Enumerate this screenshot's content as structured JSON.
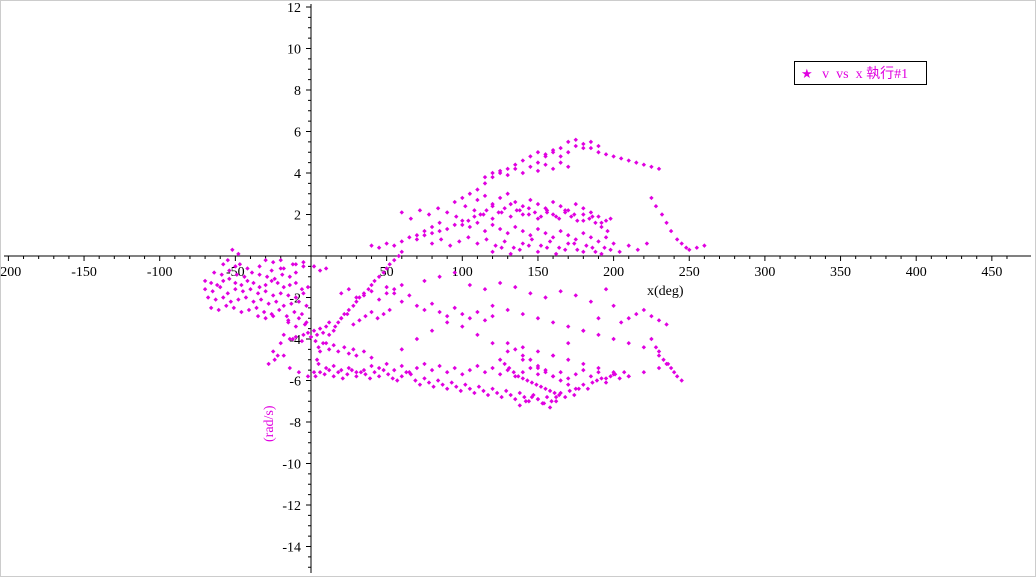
{
  "colors": {
    "series": "#e000e0",
    "axis": "#000000",
    "background": "#ffffff"
  },
  "chart_data": {
    "type": "scatter",
    "title": "",
    "xlabel": "x(deg)",
    "ylabel": "(rad/s)",
    "xlim": [
      -203,
      467
    ],
    "ylim": [
      -15.2,
      12.4
    ],
    "xticks": [
      -200,
      -150,
      -100,
      -50,
      50,
      100,
      150,
      200,
      250,
      300,
      350,
      400,
      450
    ],
    "yticks": [
      12,
      10,
      8,
      6,
      4,
      2,
      -2,
      -4,
      -6,
      -8,
      -10,
      -12,
      -14
    ],
    "xtick_labels": [
      "-200",
      "-150",
      "-100",
      "-50",
      "50",
      "100",
      "150",
      "200",
      "250",
      "300",
      "350",
      "400",
      "450"
    ],
    "ytick_labels": [
      "12",
      "10",
      "8",
      "6",
      "4",
      "2",
      "-2",
      "-4",
      "-6",
      "-8",
      "-10",
      "-12",
      "-14"
    ],
    "grid": false,
    "legend_position": "top-right",
    "legend_marker": "★",
    "series": [
      {
        "name": "v vs x執行#1",
        "marker": "diamond",
        "x": [
          -70,
          -66,
          -62,
          -58,
          -54,
          -50,
          -46,
          -42,
          -38,
          -34,
          -30,
          -26,
          -22,
          -18,
          -14,
          -10,
          -6,
          -2,
          -70,
          -65,
          -60,
          -55,
          -50,
          -45,
          -40,
          -35,
          -30,
          -25,
          -20,
          -15,
          -10,
          -5,
          -68,
          -63,
          -58,
          -53,
          -48,
          -43,
          -38,
          -33,
          -28,
          -23,
          -18,
          -13,
          -8,
          -3,
          -66,
          -61,
          -56,
          -51,
          -46,
          -41,
          -36,
          -31,
          -26,
          -21,
          -16,
          -11,
          -6,
          -64,
          -59,
          -54,
          -49,
          -44,
          -39,
          -34,
          -29,
          -24,
          -19,
          -14,
          -52,
          -48,
          -55,
          -47,
          -20,
          -10,
          -5,
          2,
          6,
          10,
          -58,
          -50,
          -42,
          -34,
          -26,
          -18,
          -10,
          -35,
          -30,
          -25,
          -15,
          -8,
          -3,
          -30,
          -25,
          -20,
          -12,
          -5,
          -15,
          -10,
          -4,
          -28,
          -24,
          -22,
          -18,
          -14,
          -8,
          -2,
          2,
          4,
          6,
          10,
          12,
          15,
          18,
          20,
          22,
          25,
          28,
          30,
          32,
          35,
          38,
          40,
          42,
          45,
          48,
          50,
          52,
          55,
          58,
          60,
          3,
          6,
          9,
          12,
          15,
          18,
          21,
          24,
          27,
          30,
          33,
          36,
          39,
          42,
          45,
          48,
          51,
          54,
          57,
          60,
          63,
          66,
          69,
          72,
          75,
          78,
          81,
          84,
          87,
          90,
          93,
          96,
          99,
          102,
          105,
          108,
          111,
          114,
          117,
          120,
          123,
          126,
          129,
          132,
          135,
          138,
          141,
          144,
          147,
          150,
          153,
          156,
          159,
          162,
          165,
          168,
          171,
          174,
          177,
          180,
          183,
          186,
          189,
          192,
          195,
          198,
          201,
          204,
          207,
          210,
          5,
          10,
          15,
          20,
          25,
          30,
          35,
          40,
          45,
          50,
          55,
          60,
          65,
          70,
          75,
          80,
          85,
          90,
          95,
          100,
          105,
          110,
          115,
          120,
          125,
          130,
          135,
          140,
          145,
          150,
          155,
          160,
          165,
          170,
          175,
          180,
          185,
          190,
          195,
          200,
          -25,
          -20,
          -12,
          -5,
          0,
          3,
          -18,
          -14,
          -10,
          -6,
          -2,
          0,
          2,
          4,
          6,
          8,
          10,
          5,
          8,
          12,
          15,
          18,
          22,
          25,
          28,
          30,
          35,
          40,
          12,
          16,
          20,
          24,
          28,
          32,
          36,
          40,
          44,
          48,
          52,
          20,
          25,
          30,
          35,
          40,
          45,
          50,
          55,
          60,
          40,
          45,
          50,
          55,
          60,
          65,
          70,
          75,
          80,
          85,
          50,
          55,
          60,
          65,
          70,
          75,
          80,
          85,
          90,
          95,
          100,
          105,
          110,
          115,
          120,
          60,
          66,
          72,
          78,
          84,
          90,
          96,
          102,
          108,
          114,
          120,
          126,
          132,
          138,
          144,
          150,
          156,
          162,
          168,
          174,
          180,
          186,
          192,
          198,
          70,
          75,
          80,
          85,
          90,
          95,
          100,
          105,
          110,
          115,
          120,
          125,
          130,
          135,
          140,
          145,
          150,
          155,
          160,
          165,
          170,
          175,
          180,
          185,
          190,
          195,
          200,
          80,
          86,
          92,
          98,
          104,
          110,
          116,
          122,
          128,
          134,
          140,
          146,
          152,
          158,
          164,
          170,
          176,
          182,
          188,
          194,
          95,
          100,
          105,
          110,
          115,
          120,
          125,
          130,
          135,
          140,
          145,
          150,
          155,
          160,
          165,
          170,
          175,
          180,
          185,
          190,
          195,
          100,
          104,
          108,
          112,
          116,
          120,
          124,
          128,
          132,
          136,
          140,
          144,
          148,
          152,
          156,
          160,
          164,
          168,
          172,
          176,
          180,
          184,
          188,
          192,
          196,
          110,
          115,
          120,
          125,
          130,
          135,
          140,
          145,
          150,
          155,
          160,
          165,
          170,
          175,
          180,
          185,
          190,
          115,
          120,
          125,
          130,
          135,
          140,
          145,
          150,
          155,
          160,
          165,
          170,
          120,
          126,
          132,
          138,
          144,
          150,
          156,
          162,
          168,
          174,
          180,
          186,
          192,
          198,
          204,
          210,
          216,
          222,
          150,
          155,
          160,
          165,
          170,
          175,
          180,
          185,
          190,
          195,
          200,
          205,
          210,
          215,
          220,
          225,
          230,
          225,
          228,
          232,
          235,
          238,
          242,
          245,
          248,
          250,
          255,
          260,
          225,
          228,
          230,
          233,
          236,
          238,
          240,
          242,
          245,
          60,
          70,
          80,
          90,
          100,
          110,
          120,
          130,
          140,
          150,
          160,
          170,
          180,
          190,
          200,
          205,
          210,
          215,
          220,
          225,
          230,
          235,
          75,
          85,
          95,
          105,
          115,
          125,
          135,
          145,
          155,
          165,
          175,
          185,
          195,
          140,
          150,
          160,
          170,
          180,
          190,
          200,
          210,
          220,
          230,
          235,
          120,
          130,
          140,
          150,
          160,
          170,
          180,
          190,
          200,
          210,
          220,
          230,
          130,
          135,
          140,
          145,
          150,
          155,
          160,
          165,
          170,
          175,
          125,
          128,
          131,
          134,
          137,
          140,
          143,
          146,
          149,
          152,
          155,
          158,
          161,
          164,
          138,
          142,
          146,
          150,
          154,
          158,
          162
        ],
        "y": [
          -1.2,
          -1.3,
          -1.4,
          -1.2,
          -1.1,
          -1.3,
          -1.4,
          -1.2,
          -1.3,
          -1.5,
          -1.4,
          -1.2,
          -1.3,
          -1.5,
          -1.4,
          -1.3,
          -1.6,
          -1.5,
          -1.6,
          -1.7,
          -1.5,
          -1.8,
          -1.6,
          -1.7,
          -1.6,
          -1.8,
          -1.7,
          -1.9,
          -1.8,
          -1.9,
          -2.0,
          -1.8,
          -2.0,
          -2.1,
          -2.0,
          -2.2,
          -2.1,
          -2.0,
          -2.2,
          -2.1,
          -2.3,
          -2.2,
          -2.4,
          -2.3,
          -2.2,
          -2.4,
          -2.5,
          -2.6,
          -2.4,
          -2.5,
          -2.7,
          -2.6,
          -2.5,
          -2.7,
          -2.8,
          -2.6,
          -2.9,
          -2.7,
          -2.8,
          -0.8,
          -0.9,
          -0.7,
          -0.9,
          -1.0,
          -0.8,
          -0.9,
          -1.0,
          -1.1,
          -0.9,
          -1.0,
          0.3,
          0.1,
          -0.2,
          -0.4,
          -0.6,
          -0.4,
          -0.3,
          -0.5,
          -0.7,
          -0.6,
          -0.4,
          -0.5,
          -0.6,
          -0.5,
          -0.7,
          -0.6,
          -0.8,
          -2.9,
          -3.0,
          -2.9,
          -3.1,
          -3.0,
          -3.2,
          -0.2,
          -0.3,
          -0.2,
          -0.4,
          -0.5,
          -3.2,
          -3.4,
          -3.3,
          -5.2,
          -5.0,
          -4.8,
          -4.8,
          -5.4,
          -5.6,
          -5.8,
          -5.6,
          -5.0,
          -4.6,
          -4.2,
          -3.8,
          -3.6,
          -3.2,
          -3.0,
          -2.8,
          -2.6,
          -2.4,
          -2.2,
          -2.0,
          -1.8,
          -1.6,
          -1.4,
          -1.2,
          -1.0,
          -0.8,
          -0.6,
          -0.4,
          -0.2,
          0.0,
          0.2,
          -5.8,
          -5.6,
          -5.7,
          -5.5,
          -5.8,
          -5.6,
          -5.9,
          -5.7,
          -5.5,
          -5.8,
          -5.6,
          -5.7,
          -5.9,
          -5.6,
          -5.8,
          -5.5,
          -5.7,
          -5.9,
          -6.0,
          -5.8,
          -5.6,
          -5.7,
          -6.0,
          -6.2,
          -5.9,
          -6.1,
          -6.3,
          -6.0,
          -6.2,
          -6.4,
          -6.1,
          -6.3,
          -6.5,
          -6.2,
          -6.4,
          -6.6,
          -6.3,
          -6.5,
          -6.7,
          -6.4,
          -6.6,
          -6.8,
          -6.5,
          -6.7,
          -6.9,
          -6.6,
          -6.8,
          -7.0,
          -6.7,
          -6.9,
          -7.1,
          -6.8,
          -7.0,
          -6.8,
          -6.6,
          -6.8,
          -6.5,
          -6.7,
          -6.4,
          -6.2,
          -6.4,
          -6.1,
          -6.0,
          -5.9,
          -6.1,
          -5.8,
          -5.7,
          -5.9,
          -5.6,
          -5.8,
          -5.2,
          -5.4,
          -5.3,
          -5.5,
          -5.4,
          -5.6,
          -5.5,
          -5.3,
          -5.4,
          -5.2,
          -5.5,
          -5.3,
          -5.6,
          -5.4,
          -5.2,
          -5.5,
          -5.3,
          -5.6,
          -5.4,
          -5.7,
          -5.5,
          -5.3,
          -5.6,
          -5.4,
          -5.7,
          -5.5,
          -5.8,
          -5.6,
          -5.4,
          -5.7,
          -5.5,
          -5.8,
          -5.6,
          -5.9,
          -5.7,
          -5.5,
          -5.8,
          -5.6,
          -5.9,
          -5.7,
          -4.6,
          -4.2,
          -4.0,
          -3.8,
          -3.9,
          -4.1,
          -3.8,
          -4.0,
          -3.9,
          -4.1,
          -3.7,
          -3.9,
          -3.6,
          -3.8,
          -3.5,
          -3.7,
          -3.4,
          -4.4,
          -4.2,
          -4.5,
          -4.3,
          -4.6,
          -4.4,
          -4.7,
          -4.5,
          -4.8,
          -4.6,
          -4.9,
          -3.2,
          -3.4,
          -3.0,
          -2.8,
          -3.3,
          -3.1,
          -2.9,
          -2.7,
          -3.0,
          -2.8,
          -2.6,
          -1.8,
          -1.6,
          -2.0,
          -1.9,
          -1.7,
          -2.1,
          -1.8,
          -1.6,
          -1.4,
          0.5,
          0.4,
          0.6,
          0.5,
          0.7,
          0.9,
          0.8,
          1.0,
          1.1,
          1.2,
          -1.5,
          -1.8,
          -2.2,
          -1.9,
          -2.4,
          -2.6,
          -2.3,
          -2.7,
          -2.9,
          -2.5,
          -2.8,
          -3.0,
          -2.7,
          -3.1,
          -2.9,
          2.1,
          1.8,
          2.2,
          2.0,
          2.3,
          2.1,
          1.9,
          2.4,
          2.2,
          2.0,
          1.8,
          2.1,
          1.9,
          2.2,
          2.0,
          1.8,
          2.1,
          1.9,
          2.2,
          2.0,
          1.7,
          1.9,
          1.6,
          1.8,
          1.0,
          1.2,
          1.4,
          1.6,
          1.3,
          1.5,
          1.7,
          1.4,
          1.6,
          1.2,
          1.5,
          1.3,
          1.1,
          1.4,
          1.2,
          1.0,
          1.3,
          1.1,
          0.9,
          1.2,
          1.0,
          0.8,
          1.1,
          0.9,
          0.7,
          0.9,
          0.6,
          0.6,
          0.8,
          0.5,
          0.7,
          0.9,
          0.6,
          0.8,
          0.5,
          0.7,
          0.4,
          0.6,
          0.8,
          0.5,
          0.7,
          0.4,
          0.6,
          0.3,
          0.5,
          0.2,
          0.4,
          2.6,
          2.8,
          3.0,
          2.7,
          2.9,
          2.5,
          2.8,
          3.0,
          2.6,
          2.4,
          2.7,
          2.5,
          2.3,
          2.6,
          2.4,
          2.2,
          2.5,
          2.3,
          2.1,
          1.9,
          1.7,
          1.5,
          1.7,
          1.9,
          2.0,
          2.2,
          2.4,
          2.1,
          2.3,
          2.5,
          2.2,
          2.0,
          2.3,
          2.1,
          1.9,
          2.2,
          2.0,
          1.8,
          2.1,
          1.9,
          1.7,
          2.0,
          1.8,
          1.6,
          1.4,
          1.2,
          3.2,
          3.5,
          3.8,
          4.0,
          4.2,
          4.4,
          4.6,
          4.8,
          5.0,
          4.9,
          5.1,
          4.8,
          5.0,
          5.3,
          5.2,
          5.5,
          5.3,
          3.8,
          4.0,
          4.1,
          3.9,
          4.2,
          4.0,
          4.3,
          4.1,
          4.4,
          4.2,
          4.5,
          4.3,
          0.2,
          0.4,
          0.1,
          0.3,
          0.5,
          0.2,
          0.4,
          0.1,
          0.3,
          0.6,
          0.2,
          0.4,
          0.1,
          0.3,
          0.2,
          0.5,
          0.3,
          0.6,
          4.5,
          4.8,
          5.0,
          5.2,
          5.5,
          5.6,
          5.4,
          5.2,
          5.0,
          4.9,
          4.8,
          4.7,
          4.6,
          4.5,
          4.4,
          4.3,
          4.2,
          2.8,
          2.4,
          2.0,
          1.6,
          1.2,
          0.8,
          0.6,
          0.4,
          0.3,
          0.4,
          0.5,
          -4.0,
          -4.4,
          -4.8,
          -5.0,
          -5.2,
          -5.4,
          -5.6,
          -5.8,
          -6.0,
          -4.5,
          -4.0,
          -3.6,
          -3.2,
          -3.4,
          -3.8,
          -4.2,
          -4.6,
          -5.0,
          -5.4,
          -4.8,
          -4.2,
          -3.6,
          -3.0,
          -2.4,
          -3.2,
          -3.0,
          -2.8,
          -2.6,
          -2.9,
          -3.1,
          -3.3,
          -1.2,
          -1.0,
          -0.8,
          -1.4,
          -1.6,
          -1.3,
          -1.5,
          -1.8,
          -2.0,
          -1.7,
          -1.9,
          -2.2,
          -1.6,
          -4.4,
          -4.6,
          -4.8,
          -5.0,
          -5.2,
          -5.4,
          -5.6,
          -5.8,
          -5.6,
          -5.4,
          -5.2,
          -2.4,
          -2.6,
          -2.8,
          -3.0,
          -3.2,
          -3.4,
          -3.6,
          -3.8,
          -4.0,
          -4.2,
          -4.4,
          -4.6,
          -4.2,
          -4.5,
          -4.8,
          -5.0,
          -5.3,
          -5.6,
          -5.8,
          -6.0,
          -6.2,
          -6.4,
          -5.0,
          -5.2,
          -5.4,
          -5.6,
          -5.8,
          -5.9,
          -6.0,
          -6.1,
          -6.2,
          -6.3,
          -6.4,
          -6.5,
          -6.6,
          -6.7,
          -7.2,
          -7.0,
          -6.8,
          -6.9,
          -7.1,
          -7.3,
          -7.0
        ]
      }
    ]
  },
  "legend": {
    "symbol": "★",
    "label": " v  vs  x 執行#1"
  }
}
